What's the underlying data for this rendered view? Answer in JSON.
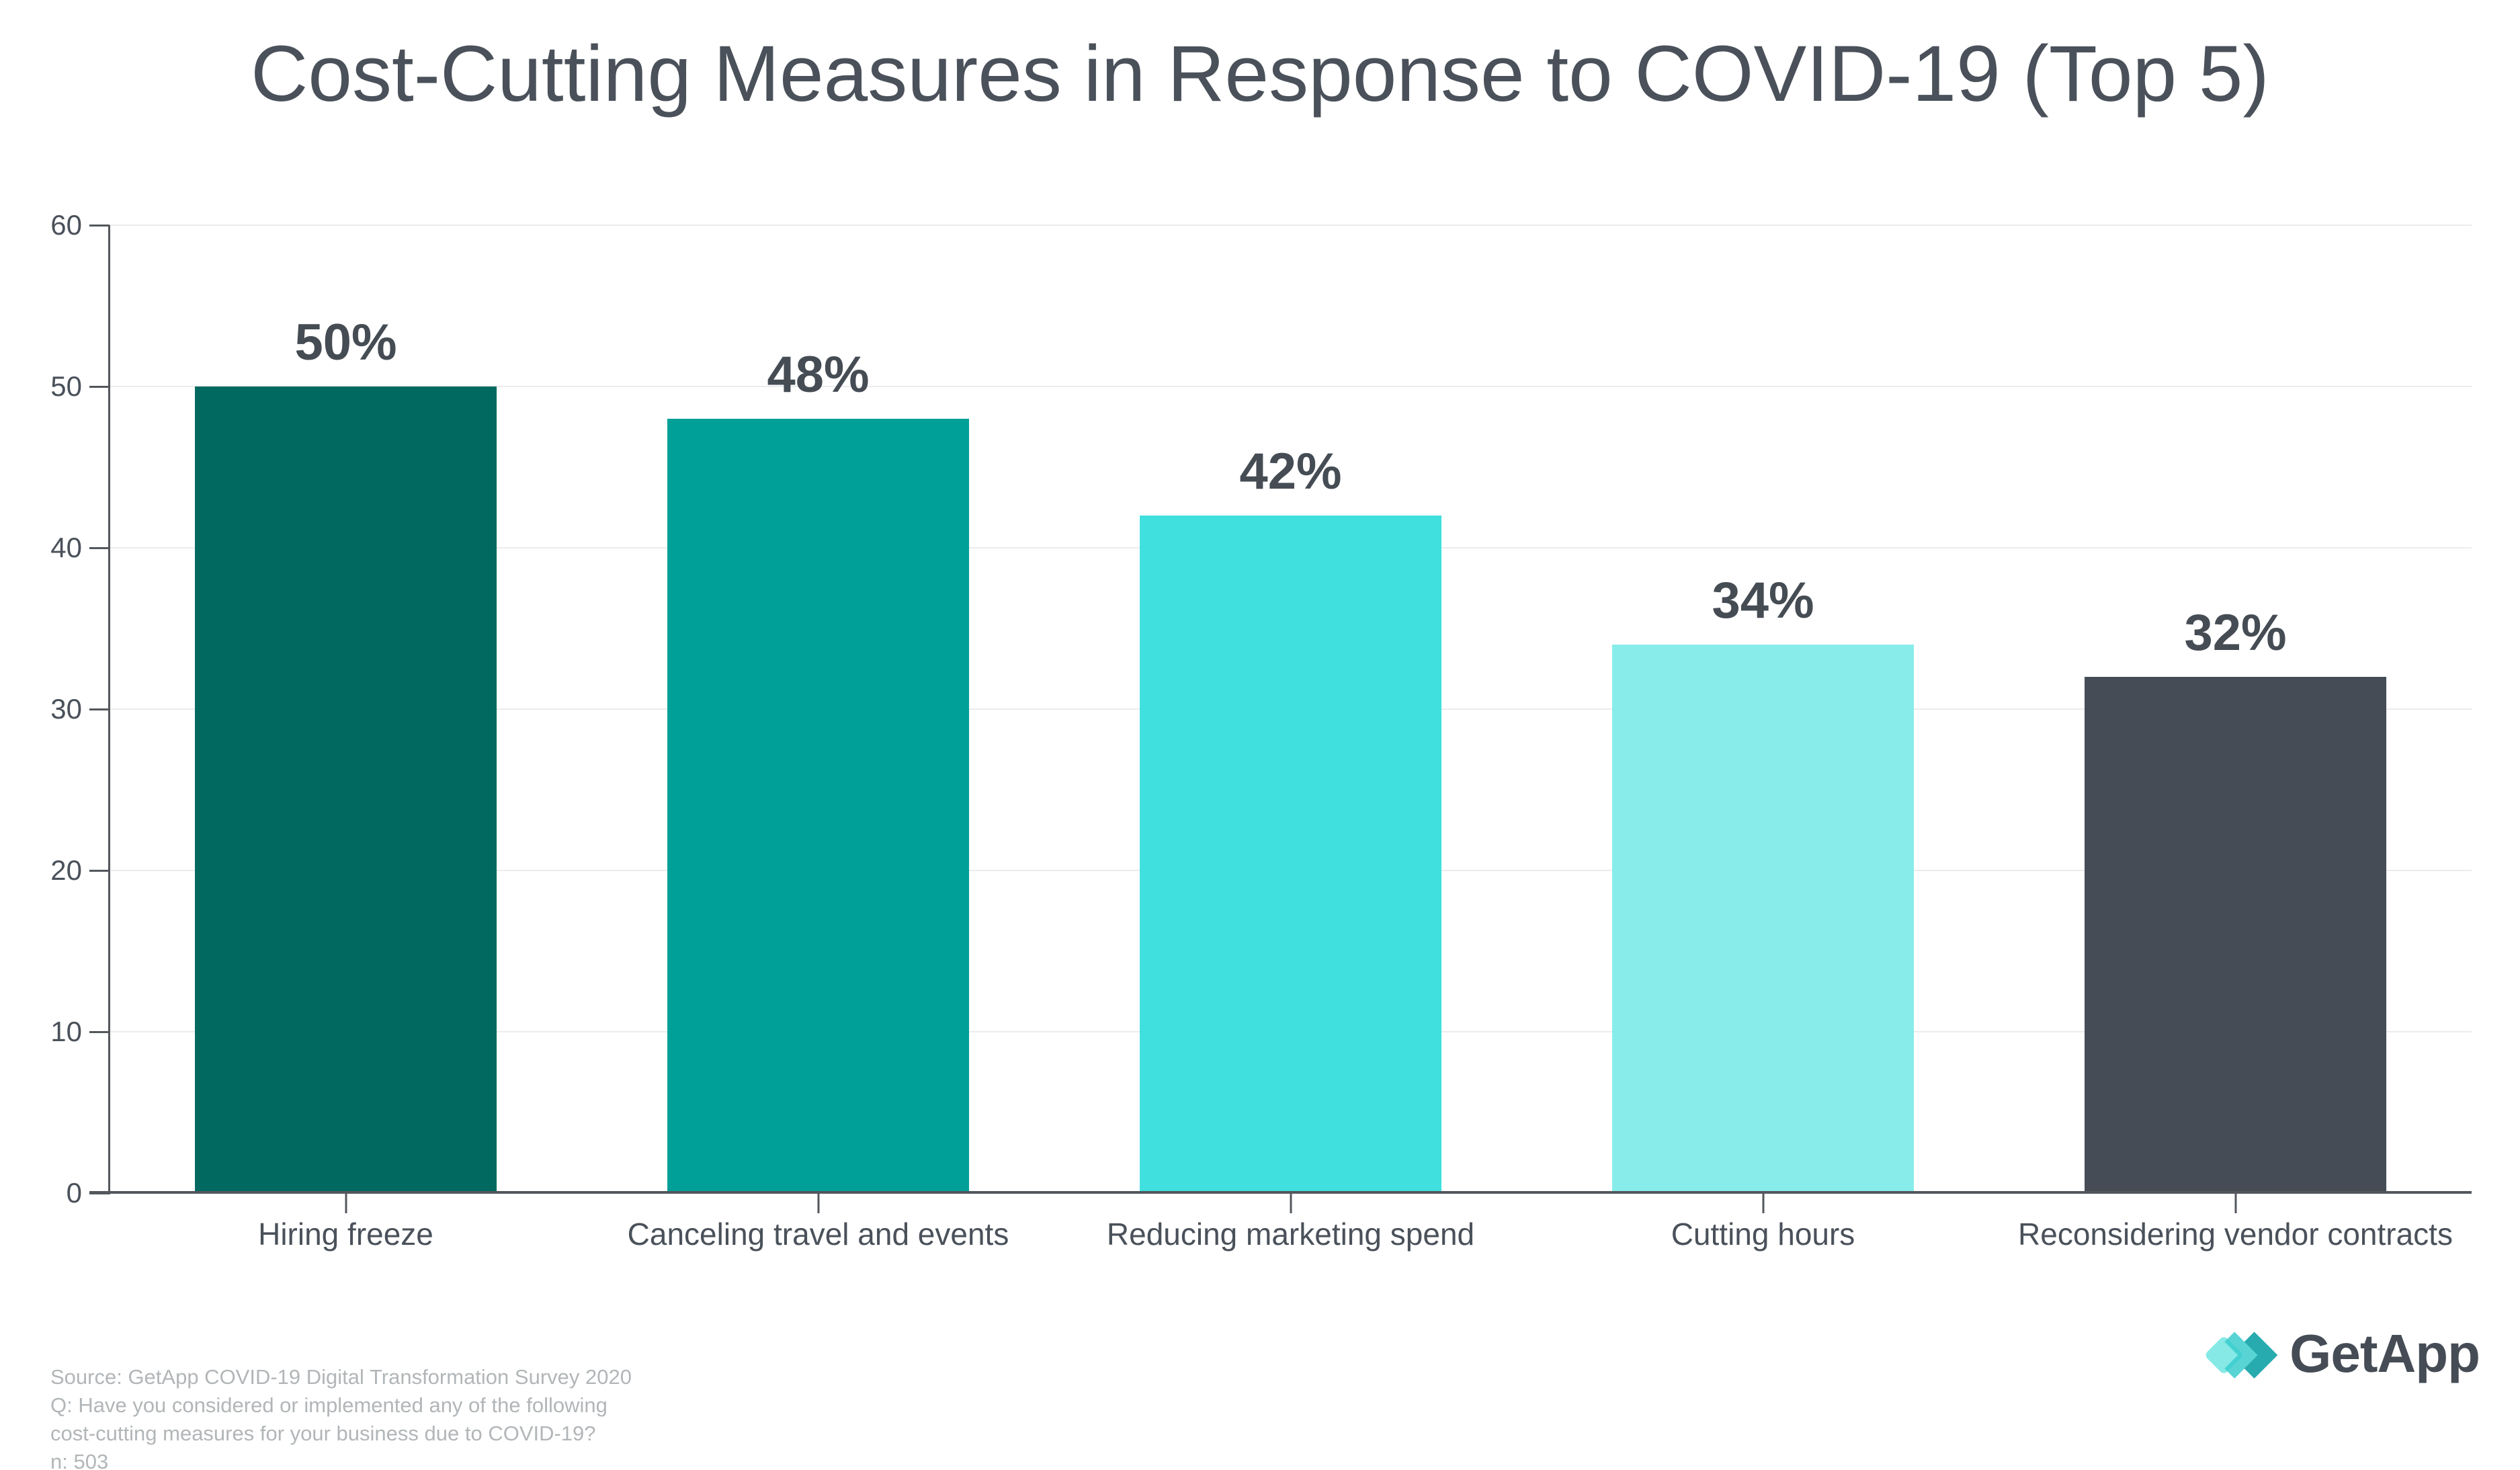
{
  "title": "Cost-Cutting Measures in Response to COVID-19 (Top 5)",
  "chart_data": {
    "type": "bar",
    "categories": [
      "Hiring freeze",
      "Canceling travel and events",
      "Reducing marketing spend",
      "Cutting hours",
      "Reconsidering vendor contracts"
    ],
    "values": [
      50,
      48,
      42,
      34,
      32
    ],
    "value_labels": [
      "50%",
      "48%",
      "42%",
      "34%",
      "32%"
    ],
    "bar_colors": [
      "#026960",
      "#00A099",
      "#3FE0DE",
      "#87ECEA",
      "#454C55"
    ],
    "title": "Cost-Cutting Measures in Response to COVID-19 (Top 5)",
    "xlabel": "",
    "ylabel": "",
    "ylim": [
      0,
      60
    ],
    "yticks": [
      0,
      10,
      20,
      30,
      40,
      50,
      60
    ],
    "grid": "horizontal",
    "legend": "none"
  },
  "footer": {
    "source_lines": [
      "Source: GetApp COVID-19 Digital Transformation Survey 2020",
      "Q: Have you considered or implemented any of the following",
      "cost-cutting measures for your business due to COVID-19?",
      "n: 503"
    ],
    "brand": {
      "name": "GetApp"
    }
  },
  "colors": {
    "title_text": "#4A515A",
    "value_label_text": "#454C54",
    "axis_line": "#53575C",
    "tick_label_text": "#4A515A",
    "gridline": "#ECECEC",
    "source_text": "#B2B6B8",
    "brand_text": "#454C55",
    "logo_light_teal": "#7FE8E5",
    "logo_mid_teal": "#35CBCC",
    "logo_dark_teal": "#0FA2A6",
    "background": "#FFFFFF"
  }
}
